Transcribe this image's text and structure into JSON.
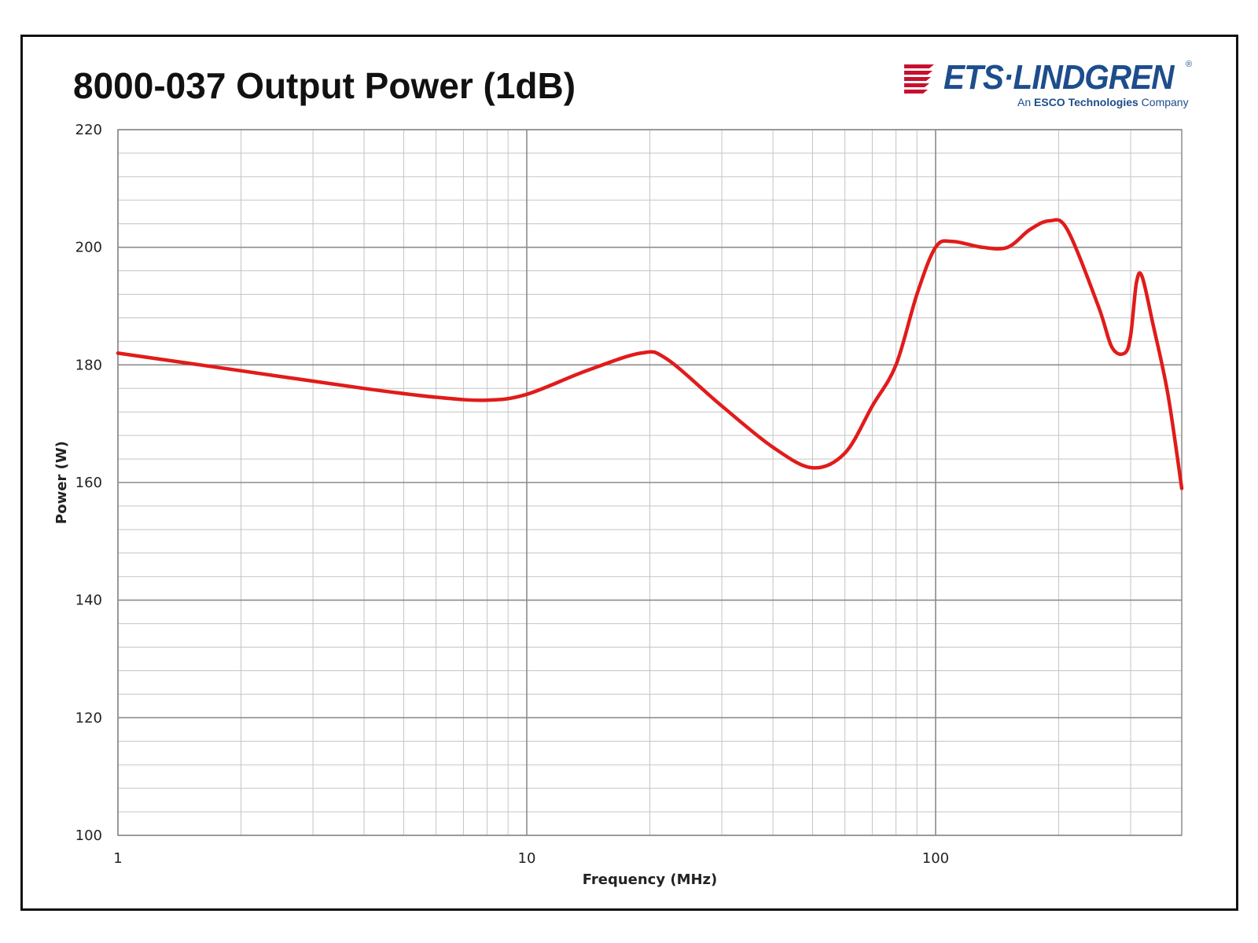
{
  "colors": {
    "series": "#e11b1b",
    "brand_blue": "#1d4d8c",
    "brand_red": "#c8102e",
    "major_grid": "#8c8c8c",
    "minor_grid": "#c4c4c4"
  },
  "logo": {
    "icon": "ets-lindgren-wave-icon",
    "name": "ETS·LINDGREN",
    "registered": "®",
    "tagline_prefix": "An ",
    "tagline_bold": "ESCO Technologies",
    "tagline_suffix": " Company"
  },
  "chart_data": {
    "type": "line",
    "title": "8000-037 Output Power (1dB)",
    "xlabel": "Frequency (MHz)",
    "ylabel": "Power (W)",
    "xscale": "log",
    "xlim": [
      1,
      400
    ],
    "ylim": [
      100,
      220
    ],
    "x_ticks": [
      1,
      10,
      100
    ],
    "x_tick_labels": [
      "1",
      "10",
      "100"
    ],
    "y_ticks": [
      100,
      120,
      140,
      160,
      180,
      200,
      220
    ],
    "y_tick_labels": [
      "100",
      "120",
      "140",
      "160",
      "180",
      "200",
      "220"
    ],
    "grid": true,
    "legend": "none",
    "series": [
      {
        "color": "#e11b1b",
        "x": [
          1,
          2,
          4,
          6,
          8,
          10,
          14,
          19,
          22,
          30,
          40,
          50,
          60,
          70,
          80,
          90,
          100,
          110,
          130,
          150,
          170,
          190,
          210,
          250,
          270,
          290,
          300,
          310,
          320,
          340,
          370,
          400
        ],
        "y": [
          182,
          179,
          176,
          174.5,
          174,
          175,
          179,
          182,
          181,
          173,
          166,
          162.5,
          165,
          173,
          180,
          192,
          200,
          201,
          200,
          200,
          203,
          204.5,
          203,
          190,
          183,
          182,
          185,
          194,
          195,
          187,
          175,
          159
        ]
      }
    ]
  }
}
